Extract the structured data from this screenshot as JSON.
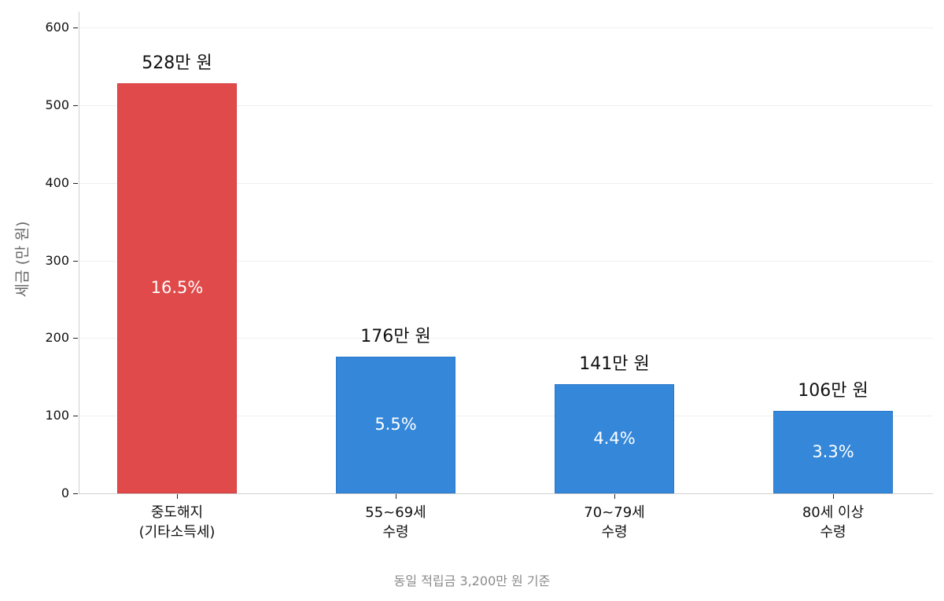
{
  "chart_data": {
    "type": "bar",
    "title": "",
    "xlabel": "",
    "ylabel": "세금 (만 원)",
    "ylim": [
      0,
      600
    ],
    "yticks": [
      0,
      100,
      200,
      300,
      400,
      500,
      600
    ],
    "grid": true,
    "categories": [
      "중도해지\n(기타소득세)",
      "55~69세\n수령",
      "70~79세\n수령",
      "80세 이상\n수령"
    ],
    "values": [
      528,
      176,
      141,
      106
    ],
    "value_labels": [
      "528만 원",
      "176만 원",
      "141만 원",
      "106만 원"
    ],
    "rate_labels": [
      "16.5%",
      "5.5%",
      "4.4%",
      "3.3%"
    ],
    "bar_colors": [
      "#e04a4a",
      "#3487d9",
      "#3487d9",
      "#3487d9"
    ],
    "annotation": "동일 적립금 3,200만 원 기준"
  },
  "axis": {
    "ylabel": "세금 (만 원)",
    "yticks": [
      "0",
      "100",
      "200",
      "300",
      "400",
      "500",
      "600"
    ]
  },
  "bars": [
    {
      "label_line1": "중도해지",
      "label_line2": "(기타소득세)",
      "value": "528만 원",
      "rate": "16.5%"
    },
    {
      "label_line1": "55~69세",
      "label_line2": "수령",
      "value": "176만 원",
      "rate": "5.5%"
    },
    {
      "label_line1": "70~79세",
      "label_line2": "수령",
      "value": "141만 원",
      "rate": "4.4%"
    },
    {
      "label_line1": "80세 이상",
      "label_line2": "수령",
      "value": "106만 원",
      "rate": "3.3%"
    }
  ],
  "footnote": "동일 적립금 3,200만 원 기준"
}
